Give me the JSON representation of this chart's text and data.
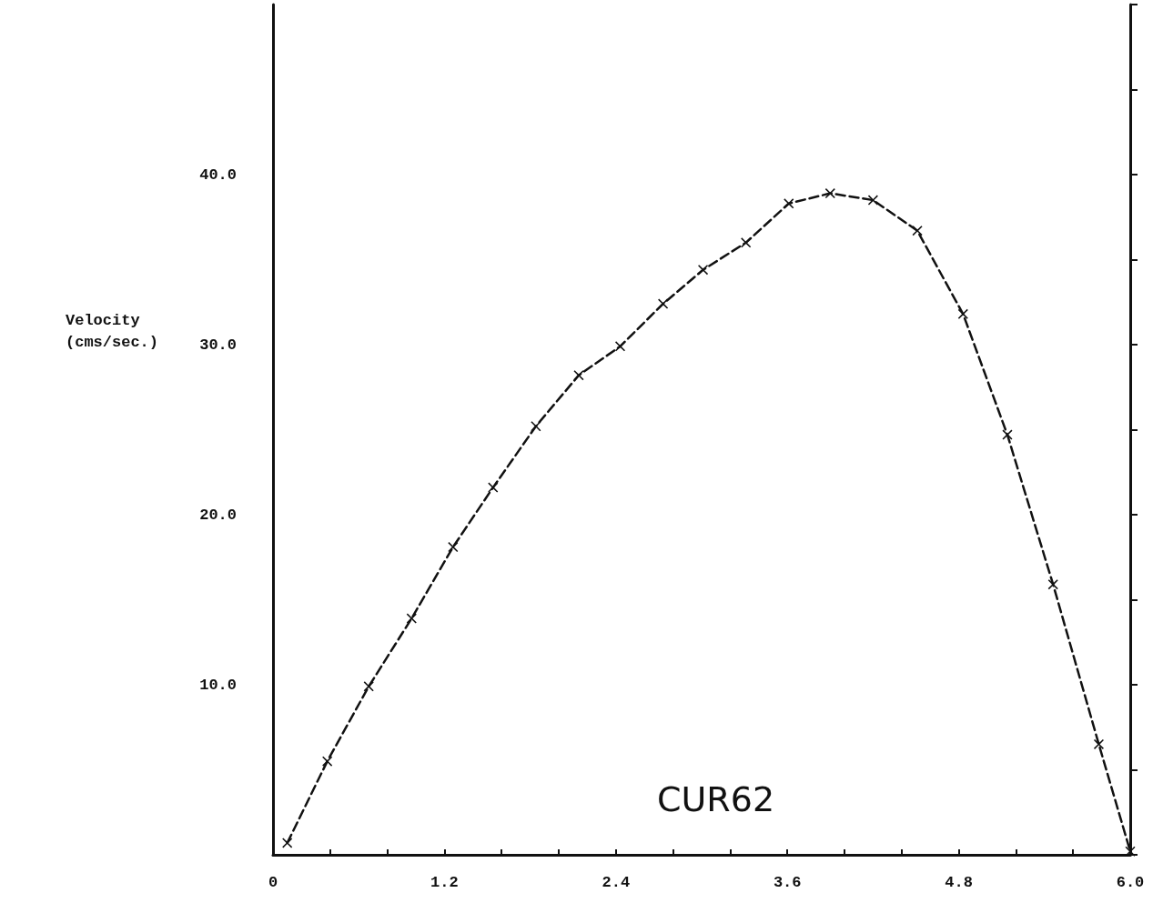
{
  "chart_data": {
    "type": "line",
    "ylabel": "Velocity\n(cms/sec.)",
    "annotations": [
      "CUR62"
    ],
    "x": [
      0.1,
      0.38,
      0.67,
      0.97,
      1.26,
      1.54,
      1.84,
      2.14,
      2.43,
      2.73,
      3.01,
      3.31,
      3.61,
      3.9,
      4.2,
      4.51,
      4.83,
      5.14,
      5.46,
      5.78,
      6.0
    ],
    "series": [
      {
        "color": "#111111",
        "values": [
          0.7,
          5.5,
          9.9,
          13.9,
          18.1,
          21.6,
          25.2,
          28.2,
          29.9,
          32.4,
          34.4,
          36.0,
          38.3,
          38.9,
          38.5,
          36.7,
          31.8,
          24.7,
          15.9,
          6.5,
          0.2
        ]
      }
    ],
    "xlim": [
      0,
      6.0
    ],
    "xticks": [
      "0",
      {
        "value": 0.4,
        "label": null
      },
      {
        "value": 0.8,
        "label": null
      },
      {
        "value": 1.2,
        "label": "1.2"
      },
      {
        "value": 1.6,
        "label": null
      },
      {
        "value": 2.0,
        "label": null
      },
      {
        "value": 2.4,
        "label": "2.4"
      },
      {
        "value": 2.8,
        "label": null
      },
      {
        "value": 3.2,
        "label": null
      },
      {
        "value": 3.6,
        "label": "3.6"
      },
      {
        "value": 4.0,
        "label": null
      },
      {
        "value": 4.4,
        "label": null
      },
      {
        "value": 4.8,
        "label": "4.8"
      },
      {
        "value": 5.2,
        "label": null
      },
      {
        "value": 5.6,
        "label": null
      },
      {
        "value": 6.0,
        "label": "6.0"
      }
    ],
    "ylim": [
      0,
      50
    ],
    "yticks": [
      {
        "value": 0,
        "label": null
      },
      {
        "value": 5,
        "label": null
      },
      {
        "value": 10,
        "label": "10.0"
      },
      {
        "value": 15,
        "label": null
      },
      {
        "value": 20,
        "label": "20.0"
      },
      {
        "value": 25,
        "label": null
      },
      {
        "value": 30,
        "label": "30.0"
      },
      {
        "value": 35,
        "label": null
      },
      {
        "value": 40,
        "label": "40.0"
      },
      {
        "value": 45,
        "label": null
      },
      {
        "value": 50,
        "label": null
      }
    ],
    "grid": false,
    "marker": "cross",
    "line_style": "dashed"
  }
}
